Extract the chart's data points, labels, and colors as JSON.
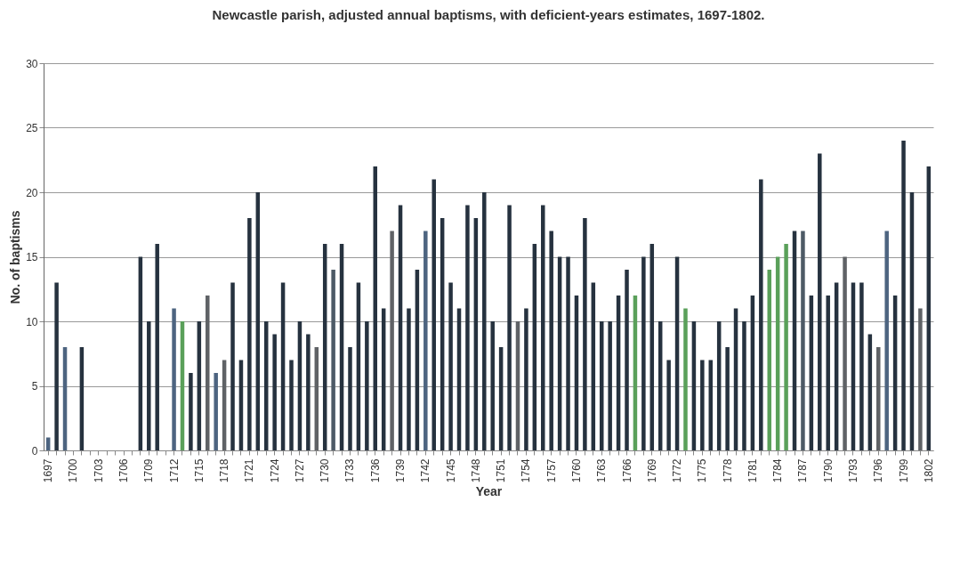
{
  "chart_data": {
    "type": "bar",
    "title": "Newcastle parish, adjusted annual baptisms, with deficient-years estimates, 1697-1802.",
    "xlabel": "Year",
    "ylabel": "No. of baptisms",
    "categories": [
      "1697",
      null,
      null,
      "1700",
      null,
      null,
      "1703",
      null,
      null,
      "1706",
      null,
      null,
      "1709",
      null,
      null,
      "1712",
      null,
      null,
      "1715",
      null,
      null,
      "1718",
      null,
      null,
      "1721",
      null,
      null,
      "1724",
      null,
      null,
      "1727",
      null,
      null,
      "1730",
      null,
      null,
      "1733",
      null,
      null,
      "1736",
      null,
      null,
      "1739",
      null,
      null,
      "1742",
      null,
      null,
      "1745",
      null,
      null,
      "1748",
      null,
      null,
      "1751",
      null,
      null,
      "1754",
      null,
      null,
      "1757",
      null,
      null,
      "1760",
      null,
      null,
      "1763",
      null,
      null,
      "1766",
      null,
      null,
      "1769",
      null,
      null,
      "1772",
      null,
      null,
      "1775",
      null,
      null,
      "1778",
      null,
      null,
      "1781",
      null,
      null,
      "1784",
      null,
      null,
      "1787",
      null,
      null,
      "1790",
      null,
      null,
      "1793",
      null,
      null,
      "1796",
      null,
      null,
      "1799",
      null,
      null,
      "1802"
    ],
    "values": [
      1,
      13,
      8,
      0,
      8,
      0,
      0,
      0,
      0,
      0,
      0,
      15,
      10,
      16,
      0,
      11,
      10,
      6,
      10,
      12,
      6,
      7,
      13,
      7,
      18,
      20,
      10,
      9,
      13,
      7,
      10,
      9,
      8,
      16,
      14,
      16,
      8,
      13,
      10,
      22,
      11,
      17,
      19,
      11,
      14,
      17,
      21,
      18,
      13,
      11,
      19,
      18,
      20,
      10,
      8,
      19,
      10,
      11,
      16,
      19,
      17,
      15,
      15,
      12,
      18,
      13,
      10,
      10,
      12,
      14,
      12,
      15,
      16,
      10,
      7,
      15,
      11,
      10,
      7,
      7,
      10,
      8,
      11,
      10,
      12,
      21,
      14,
      15,
      16,
      17,
      17,
      12,
      23,
      12,
      13,
      15,
      13,
      13,
      9,
      8,
      17,
      12,
      24,
      20,
      11,
      22
    ],
    "colors": [
      "#4d6480",
      "#26323f",
      "#4d6480",
      "#26323f",
      "#26323f",
      "#26323f",
      "#26323f",
      "#26323f",
      "#26323f",
      "#26323f",
      "#26323f",
      "#26323f",
      "#26323f",
      "#26323f",
      "#26323f",
      "#4d6480",
      "#5aa05a",
      "#26323f",
      "#26323f",
      "#5f6266",
      "#4d6480",
      "#5f6266",
      "#26323f",
      "#26323f",
      "#26323f",
      "#26323f",
      "#26323f",
      "#26323f",
      "#26323f",
      "#26323f",
      "#26323f",
      "#26323f",
      "#5f6266",
      "#26323f",
      "#4d5a66",
      "#26323f",
      "#26323f",
      "#26323f",
      "#26323f",
      "#26323f",
      "#26323f",
      "#5f6266",
      "#26323f",
      "#26323f",
      "#26323f",
      "#4d6480",
      "#26323f",
      "#26323f",
      "#26323f",
      "#26323f",
      "#26323f",
      "#26323f",
      "#26323f",
      "#26323f",
      "#26323f",
      "#26323f",
      "#5f6266",
      "#26323f",
      "#26323f",
      "#26323f",
      "#26323f",
      "#26323f",
      "#26323f",
      "#26323f",
      "#26323f",
      "#26323f",
      "#26323f",
      "#26323f",
      "#26323f",
      "#26323f",
      "#5aa05a",
      "#26323f",
      "#26323f",
      "#26323f",
      "#26323f",
      "#26323f",
      "#5aa05a",
      "#26323f",
      "#26323f",
      "#26323f",
      "#26323f",
      "#26323f",
      "#26323f",
      "#26323f",
      "#26323f",
      "#26323f",
      "#5aa05a",
      "#5aa05a",
      "#5aa05a",
      "#26323f",
      "#4d5a66",
      "#26323f",
      "#26323f",
      "#26323f",
      "#26323f",
      "#5f6266",
      "#26323f",
      "#26323f",
      "#26323f",
      "#5f6266",
      "#4d6480",
      "#26323f",
      "#26323f",
      "#26323f",
      "#5f6266",
      "#26323f"
    ],
    "ylim": [
      0,
      30
    ],
    "yticks": [
      0,
      5,
      10,
      15,
      20,
      25,
      30
    ],
    "grid": "y"
  }
}
